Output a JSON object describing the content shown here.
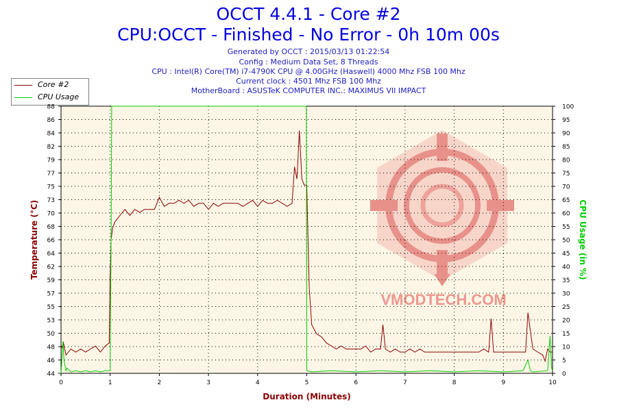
{
  "chart_data": {
    "type": "line",
    "title": "OCCT 4.4.1 - Core #2",
    "subtitle": "CPU:OCCT - Finished - No Error - 0h 10m 00s",
    "info_lines": [
      "Generated by OCCT : 2015/03/13 01:22:54",
      "Config : Medium Data Set, 8 Threads",
      "CPU : Intel(R) Core(TM) i7-4790K CPU @ 4.00GHz (Haswell) 4000 Mhz FSB 100 Mhz",
      "Current clock : 4501 Mhz FSB 100 Mhz",
      "MotherBoard : ASUSTeK COMPUTER INC.: MAXIMUS VII IMPACT"
    ],
    "xlabel": "Duration (Minutes)",
    "ylabel": "Temperature (°C)",
    "y2label": "CPU Usage (in %)",
    "xlim": [
      0,
      10
    ],
    "ylim": [
      44,
      88
    ],
    "y2lim": [
      0,
      100
    ],
    "x_ticks": [
      "0",
      "1",
      "2",
      "3",
      "4",
      "5",
      "6",
      "7",
      "8",
      "9",
      "10"
    ],
    "y_ticks": [
      "44",
      "46",
      "48",
      "50",
      "53",
      "55",
      "57",
      "59",
      "62",
      "64",
      "66",
      "68",
      "70",
      "73",
      "75",
      "77",
      "79",
      "82",
      "84",
      "86",
      "88"
    ],
    "y2_ticks": [
      "0",
      "5",
      "10",
      "15",
      "20",
      "25",
      "30",
      "35",
      "40",
      "45",
      "50",
      "55",
      "60",
      "65",
      "70",
      "75",
      "80",
      "85",
      "90",
      "95",
      "100"
    ],
    "grid": true,
    "legend_position": "top-left",
    "watermark": "VMODTECH.COM",
    "series": [
      {
        "name": "Core #2",
        "color": "#8b0000",
        "axis": "left",
        "x": [
          0,
          0.05,
          0.1,
          0.2,
          0.3,
          0.4,
          0.5,
          0.6,
          0.7,
          0.8,
          0.9,
          0.98,
          1.0,
          1.02,
          1.05,
          1.1,
          1.2,
          1.3,
          1.4,
          1.5,
          1.6,
          1.7,
          1.8,
          1.9,
          2.0,
          2.1,
          2.2,
          2.3,
          2.4,
          2.5,
          2.6,
          2.7,
          2.8,
          2.9,
          3.0,
          3.1,
          3.2,
          3.3,
          3.4,
          3.5,
          3.6,
          3.7,
          3.8,
          3.9,
          4.0,
          4.1,
          4.2,
          4.3,
          4.4,
          4.5,
          4.6,
          4.7,
          4.75,
          4.8,
          4.85,
          4.9,
          4.95,
          5.0,
          5.02,
          5.05,
          5.1,
          5.2,
          5.3,
          5.4,
          5.5,
          5.6,
          5.7,
          5.8,
          5.9,
          6.0,
          6.1,
          6.2,
          6.3,
          6.4,
          6.5,
          6.55,
          6.6,
          6.7,
          6.8,
          6.9,
          7.0,
          7.1,
          7.2,
          7.3,
          7.4,
          7.5,
          7.6,
          7.7,
          7.8,
          7.9,
          8.0,
          8.1,
          8.2,
          8.3,
          8.4,
          8.5,
          8.6,
          8.7,
          8.75,
          8.8,
          8.9,
          9.0,
          9.1,
          9.2,
          9.3,
          9.4,
          9.45,
          9.5,
          9.6,
          9.7,
          9.8,
          9.85,
          9.9,
          9.95,
          10.0
        ],
        "values": [
          48,
          49,
          47,
          48,
          47.5,
          48,
          47.5,
          48,
          48.5,
          47.5,
          48.5,
          49,
          60,
          66,
          68,
          69,
          70,
          71,
          70,
          71,
          70.5,
          71,
          71,
          71,
          73,
          71.5,
          72,
          72,
          72.5,
          72,
          72.5,
          71.5,
          72,
          72,
          71,
          72,
          71.5,
          72,
          72,
          72,
          72,
          71.5,
          72,
          72.5,
          71.5,
          72.5,
          72,
          72,
          72.5,
          72,
          71.5,
          72,
          78,
          76,
          84,
          76,
          75,
          75,
          68,
          58,
          52,
          50.5,
          50,
          49,
          48.5,
          48,
          48.5,
          48,
          48,
          48,
          48,
          48.5,
          47.5,
          48,
          48,
          52,
          48,
          47.5,
          48,
          47.5,
          47.5,
          48,
          47.5,
          48,
          47.5,
          47.5,
          47.5,
          47.5,
          47.5,
          47.5,
          47.5,
          47.5,
          47.5,
          47.5,
          47.5,
          47.5,
          48,
          47.5,
          53,
          47.5,
          47.5,
          47.5,
          47.5,
          47.5,
          47.5,
          47.5,
          47.5,
          54,
          48,
          47.5,
          47,
          46,
          48,
          47.5,
          47.5
        ]
      },
      {
        "name": "CPU Usage",
        "color": "#00cc00",
        "axis": "right",
        "x": [
          0,
          0.04,
          0.06,
          0.1,
          0.12,
          0.2,
          0.3,
          0.4,
          0.5,
          0.6,
          0.7,
          0.8,
          0.9,
          1.0,
          1.02,
          1.03,
          2.0,
          3.0,
          4.0,
          4.99,
          5.0,
          5.1,
          5.5,
          6.0,
          6.5,
          7.0,
          7.5,
          8.0,
          8.5,
          9.0,
          9.4,
          9.5,
          9.55,
          9.6,
          9.9,
          9.95,
          9.98,
          10.0
        ],
        "values": [
          0,
          12,
          5,
          1,
          2,
          0.5,
          1,
          0.5,
          1,
          0.5,
          1,
          0.5,
          1,
          1,
          50,
          100,
          100,
          100,
          100,
          100,
          1,
          0.5,
          1,
          0.5,
          1,
          0.5,
          1,
          0.5,
          1,
          0.5,
          1,
          5,
          1,
          0.5,
          1,
          14,
          2,
          1
        ]
      }
    ]
  }
}
